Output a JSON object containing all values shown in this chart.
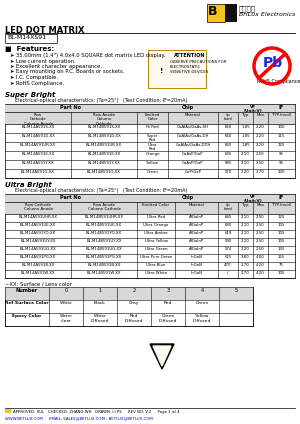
{
  "title": "LED DOT MATRIX",
  "part_number": "BL-M14XS91",
  "features_header": "Features:",
  "features": [
    "35.00mm (1.4\") 4.0x4.0 SQUARE dot matrix LED display.",
    "Low current operation.",
    "Excellent character appearance.",
    "Easy mounting on P.C. Boards or sockets.",
    "I.C. Compatible.",
    "RoHS Compliance."
  ],
  "elec_opt_header": "Electrical-optical characteristics: (Ta=25°)   (Test Condition: IF=20mA)",
  "sb_rows": [
    [
      "BL-M14A591S-XX",
      "BL-M14B591S-XX",
      "Hi Red",
      "GaAlAs/GaAs,SH",
      "660",
      "1.85",
      "2.20",
      "100"
    ],
    [
      "BL-M14A591D-XX",
      "BL-M14B591D-XX",
      "Super\nRed",
      "GaAlAs/GaAs,DH",
      "660",
      "1.85",
      "2.20",
      "115"
    ],
    [
      "BL-M14A591UR-XX",
      "BL-M14B591UR-XX",
      "Ultra\nRed",
      "GaAlAs/GaAs,DDH",
      "660",
      "1.85",
      "2.20",
      "125"
    ],
    [
      "BL-M14A591E-XX",
      "BL-M14B591E-XX",
      "Orange",
      "GaAsP/GaP",
      "635",
      "2.10",
      "2.50",
      "95"
    ],
    [
      "BL-M14A591Y-XX",
      "BL-M14B591Y-XX",
      "Yellow",
      "GaAsP/GaP",
      "585",
      "2.10",
      "2.50",
      "95"
    ],
    [
      "BL-M14A591G-XX",
      "BL-M14B591G-XX",
      "Green",
      "GaP/GaP",
      "570",
      "2.20",
      "2.70",
      "100"
    ]
  ],
  "ub_rows": [
    [
      "BL-M14A591UHR-XX",
      "BL-M14B591UHR-XX",
      "Ultra Red",
      "AlGaInP",
      "645",
      "2.10",
      "2.50",
      "125"
    ],
    [
      "BL-M14A591UE-XX",
      "BL-M14B591UE-XX",
      "Ultra Orange",
      "AlGaInP",
      "630",
      "2.10",
      "2.50",
      "105"
    ],
    [
      "BL-M14A591YO-XX",
      "BL-M14B591YO-XX",
      "Ultra Amber",
      "AlGaInP",
      "619",
      "2.10",
      "2.50",
      "105"
    ],
    [
      "BL-M14A591UY-XX",
      "BL-M14B591UY-XX",
      "Ultra Yellow",
      "AlGaInP",
      "590",
      "2.10",
      "2.50",
      "105"
    ],
    [
      "BL-M14A591UG-XX",
      "BL-M14B591UG-XX",
      "Ultra Green",
      "AlGaInP",
      "574",
      "2.20",
      "2.50",
      "135"
    ],
    [
      "BL-M14A591PG-XX",
      "BL-M14B591PG-XX",
      "Ultra Pure Green",
      "InGaN",
      "525",
      "3.60",
      "4.00",
      "155"
    ],
    [
      "BL-M14A591B-XX",
      "BL-M14B591B-XX",
      "Ultra Blue",
      "InGaN",
      "470",
      "2.70",
      "4.20",
      "75"
    ],
    [
      "BL-M14A591W-XX",
      "BL-M14B591W-XX",
      "Ultra White",
      "InGaN",
      "/",
      "2.70",
      "4.20",
      "105"
    ]
  ],
  "surface_headers": [
    "Number",
    "0",
    "1",
    "2",
    "3",
    "4",
    "5"
  ],
  "surface_rows": [
    [
      "Ref Surface Color",
      "White",
      "Black",
      "Gray",
      "Red",
      "Green",
      ""
    ],
    [
      "Epoxy Color",
      "Water\nclear",
      "White\nDiffused",
      "Red\nDiffused",
      "Green\nDiffused",
      "Yellow\nDiffused",
      ""
    ]
  ],
  "footer": "APPROVED: XUL   CHECKED: ZHANG WH   DRAWN: LI PS     REV NO: V.2     Page 1 of 4",
  "footer_url": "WWW.BETLUX.COM     EMAIL: SALES@BETLUX.COM , BETLUX@BETLUX.COM",
  "bg_color": "#ffffff"
}
